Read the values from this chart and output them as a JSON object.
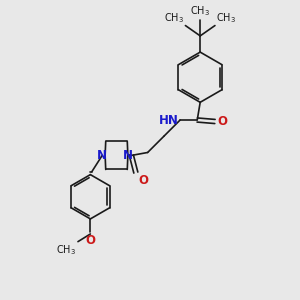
{
  "bg_color": "#e8e8e8",
  "bond_color": "#1a1a1a",
  "N_color": "#1a1acc",
  "O_color": "#cc1a1a",
  "H_color": "#4a9a9a",
  "font_size": 7.5,
  "figsize": [
    3.0,
    3.0
  ],
  "dpi": 100,
  "xlim": [
    0,
    10
  ],
  "ylim": [
    0,
    10
  ]
}
